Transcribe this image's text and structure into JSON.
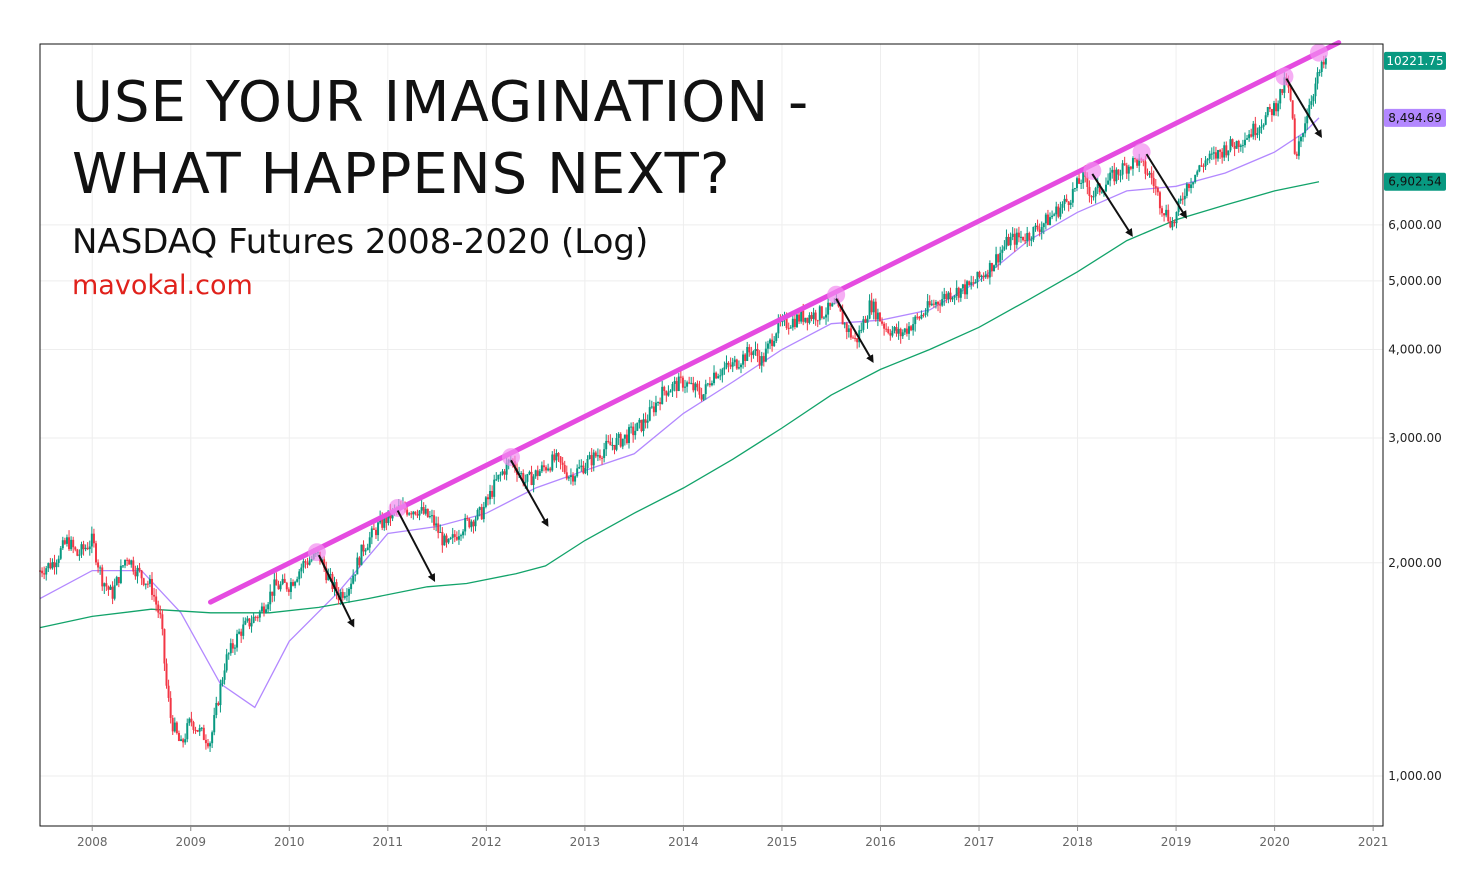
{
  "chart_data": {
    "type": "line",
    "title": "USE YOUR IMAGINATION - WHAT HAPPENS NEXT?",
    "title_lines": [
      "USE YOUR IMAGINATION -",
      "WHAT HAPPENS NEXT?"
    ],
    "subtitle": "NASDAQ Futures 2008-2020 (Log)",
    "source": "mavokal.com",
    "y_scale": "log",
    "ylim": [
      850,
      10800
    ],
    "xlim": [
      2007.47,
      2021.1
    ],
    "x_ticks": [
      2008,
      2009,
      2010,
      2011,
      2012,
      2013,
      2014,
      2015,
      2016,
      2017,
      2018,
      2019,
      2020,
      2021
    ],
    "x_tick_labels": [
      "2008",
      "2009",
      "2010",
      "2011",
      "2012",
      "2013",
      "2014",
      "2015",
      "2016",
      "2017",
      "2018",
      "2019",
      "2020",
      "2021"
    ],
    "y_ticks": [
      1000,
      2000,
      3000,
      4000,
      5000,
      6000
    ],
    "y_tick_labels": [
      "1,000.00",
      "2,000.00",
      "3,000.00",
      "4,000.00",
      "5,000.00",
      "6,000.00"
    ],
    "grid": true,
    "price_badges": [
      {
        "label": "10221.75",
        "value": 10221.75,
        "color": "#089981",
        "text_color": "#ffffff"
      },
      {
        "label": "8,494.69",
        "value": 8494.69,
        "color": "#b388ff",
        "text_color": "#111111"
      },
      {
        "label": "6,902.54",
        "value": 6902.54,
        "color": "#089981",
        "text_color": "#111111"
      }
    ],
    "series": [
      {
        "kind": "price",
        "x": [
          2007.47,
          2007.6,
          2007.75,
          2007.85,
          2008.0,
          2008.1,
          2008.2,
          2008.35,
          2008.45,
          2008.6,
          2008.7,
          2008.75,
          2008.8,
          2008.9,
          2009.0,
          2009.1,
          2009.2,
          2009.35,
          2009.5,
          2009.7,
          2009.85,
          2010.0,
          2010.15,
          2010.3,
          2010.4,
          2010.5,
          2010.6,
          2010.75,
          2010.9,
          2011.1,
          2011.3,
          2011.45,
          2011.6,
          2011.75,
          2011.95,
          2012.1,
          2012.25,
          2012.4,
          2012.55,
          2012.7,
          2012.85,
          2013.0,
          2013.2,
          2013.4,
          2013.6,
          2013.8,
          2014.0,
          2014.2,
          2014.3,
          2014.5,
          2014.7,
          2014.8,
          2014.95,
          2015.2,
          2015.4,
          2015.55,
          2015.65,
          2015.75,
          2015.9,
          2016.05,
          2016.2,
          2016.4,
          2016.5,
          2016.7,
          2016.9,
          2017.1,
          2017.3,
          2017.5,
          2017.7,
          2017.9,
          2018.05,
          2018.15,
          2018.25,
          2018.45,
          2018.6,
          2018.75,
          2018.85,
          2018.97,
          2019.1,
          2019.3,
          2019.4,
          2019.5,
          2019.6,
          2019.8,
          2020.0,
          2020.12,
          2020.18,
          2020.21,
          2020.25,
          2020.35,
          2020.45,
          2020.52
        ],
        "y": [
          1950,
          2000,
          2150,
          2050,
          2150,
          1900,
          1800,
          2050,
          1950,
          1850,
          1650,
          1350,
          1200,
          1100,
          1200,
          1150,
          1120,
          1450,
          1600,
          1700,
          1850,
          1860,
          2000,
          2050,
          1900,
          1800,
          1850,
          2100,
          2250,
          2380,
          2380,
          2300,
          2100,
          2250,
          2350,
          2600,
          2800,
          2600,
          2700,
          2800,
          2650,
          2750,
          2900,
          3000,
          3150,
          3500,
          3600,
          3450,
          3700,
          3800,
          4000,
          3850,
          4300,
          4450,
          4500,
          4600,
          4300,
          4100,
          4650,
          4300,
          4200,
          4450,
          4600,
          4800,
          4900,
          5200,
          5700,
          5800,
          6100,
          6500,
          7000,
          6600,
          6800,
          7200,
          7400,
          7000,
          6400,
          6000,
          6800,
          7400,
          7500,
          7700,
          7800,
          8200,
          8800,
          9600,
          8600,
          7200,
          7800,
          8900,
          9800,
          10221.75
        ]
      },
      {
        "kind": "moving-average-fast",
        "color": "#b388ff",
        "x": [
          2007.47,
          2008.0,
          2008.5,
          2008.9,
          2009.3,
          2009.65,
          2010.0,
          2010.5,
          2011.0,
          2011.5,
          2012.0,
          2012.5,
          2013.0,
          2013.5,
          2014.0,
          2014.5,
          2015.0,
          2015.5,
          2016.0,
          2016.5,
          2017.0,
          2017.5,
          2018.0,
          2018.5,
          2019.0,
          2019.5,
          2020.0,
          2020.3,
          2020.45
        ],
        "y": [
          1780,
          1950,
          1950,
          1700,
          1350,
          1250,
          1550,
          1820,
          2200,
          2250,
          2350,
          2550,
          2700,
          2850,
          3250,
          3600,
          4000,
          4350,
          4400,
          4550,
          5000,
          5700,
          6250,
          6700,
          6800,
          7100,
          7600,
          8100,
          8494.69
        ]
      },
      {
        "kind": "moving-average-slow",
        "color": "#12a36a",
        "x": [
          2007.47,
          2008.0,
          2008.6,
          2009.2,
          2009.8,
          2010.3,
          2010.8,
          2011.4,
          2011.8,
          2012.3,
          2012.6,
          2013.0,
          2013.5,
          2014.0,
          2014.5,
          2015.0,
          2015.5,
          2016.0,
          2016.5,
          2017.0,
          2017.5,
          2018.0,
          2018.5,
          2019.0,
          2019.5,
          2020.0,
          2020.45
        ],
        "y": [
          1620,
          1680,
          1720,
          1700,
          1700,
          1730,
          1780,
          1850,
          1870,
          1930,
          1980,
          2150,
          2350,
          2550,
          2800,
          3100,
          3450,
          3750,
          4000,
          4300,
          4700,
          5150,
          5700,
          6100,
          6400,
          6700,
          6902.54
        ]
      },
      {
        "kind": "trendline",
        "color": "#e54be0",
        "x": [
          2009.2,
          2020.65
        ],
        "y": [
          1760,
          10850
        ]
      }
    ],
    "annotations": {
      "touch_points": [
        {
          "x": 2010.28,
          "y": 2070
        },
        {
          "x": 2011.1,
          "y": 2390
        },
        {
          "x": 2012.25,
          "y": 2820
        },
        {
          "x": 2015.55,
          "y": 4780
        },
        {
          "x": 2018.15,
          "y": 7150
        },
        {
          "x": 2018.65,
          "y": 7600
        },
        {
          "x": 2020.1,
          "y": 9720
        },
        {
          "x": 2020.45,
          "y": 10500
        }
      ],
      "arrows": [
        {
          "x1": 2010.3,
          "y1": 2050,
          "x2": 2010.65,
          "y2": 1630
        },
        {
          "x1": 2011.1,
          "y1": 2370,
          "x2": 2011.47,
          "y2": 1890
        },
        {
          "x1": 2012.25,
          "y1": 2790,
          "x2": 2012.62,
          "y2": 2260
        },
        {
          "x1": 2015.55,
          "y1": 4720,
          "x2": 2015.92,
          "y2": 3850
        },
        {
          "x1": 2018.15,
          "y1": 7080,
          "x2": 2018.55,
          "y2": 5800
        },
        {
          "x1": 2018.7,
          "y1": 7550,
          "x2": 2019.1,
          "y2": 6150
        },
        {
          "x1": 2020.12,
          "y1": 9650,
          "x2": 2020.47,
          "y2": 8000
        }
      ]
    }
  }
}
